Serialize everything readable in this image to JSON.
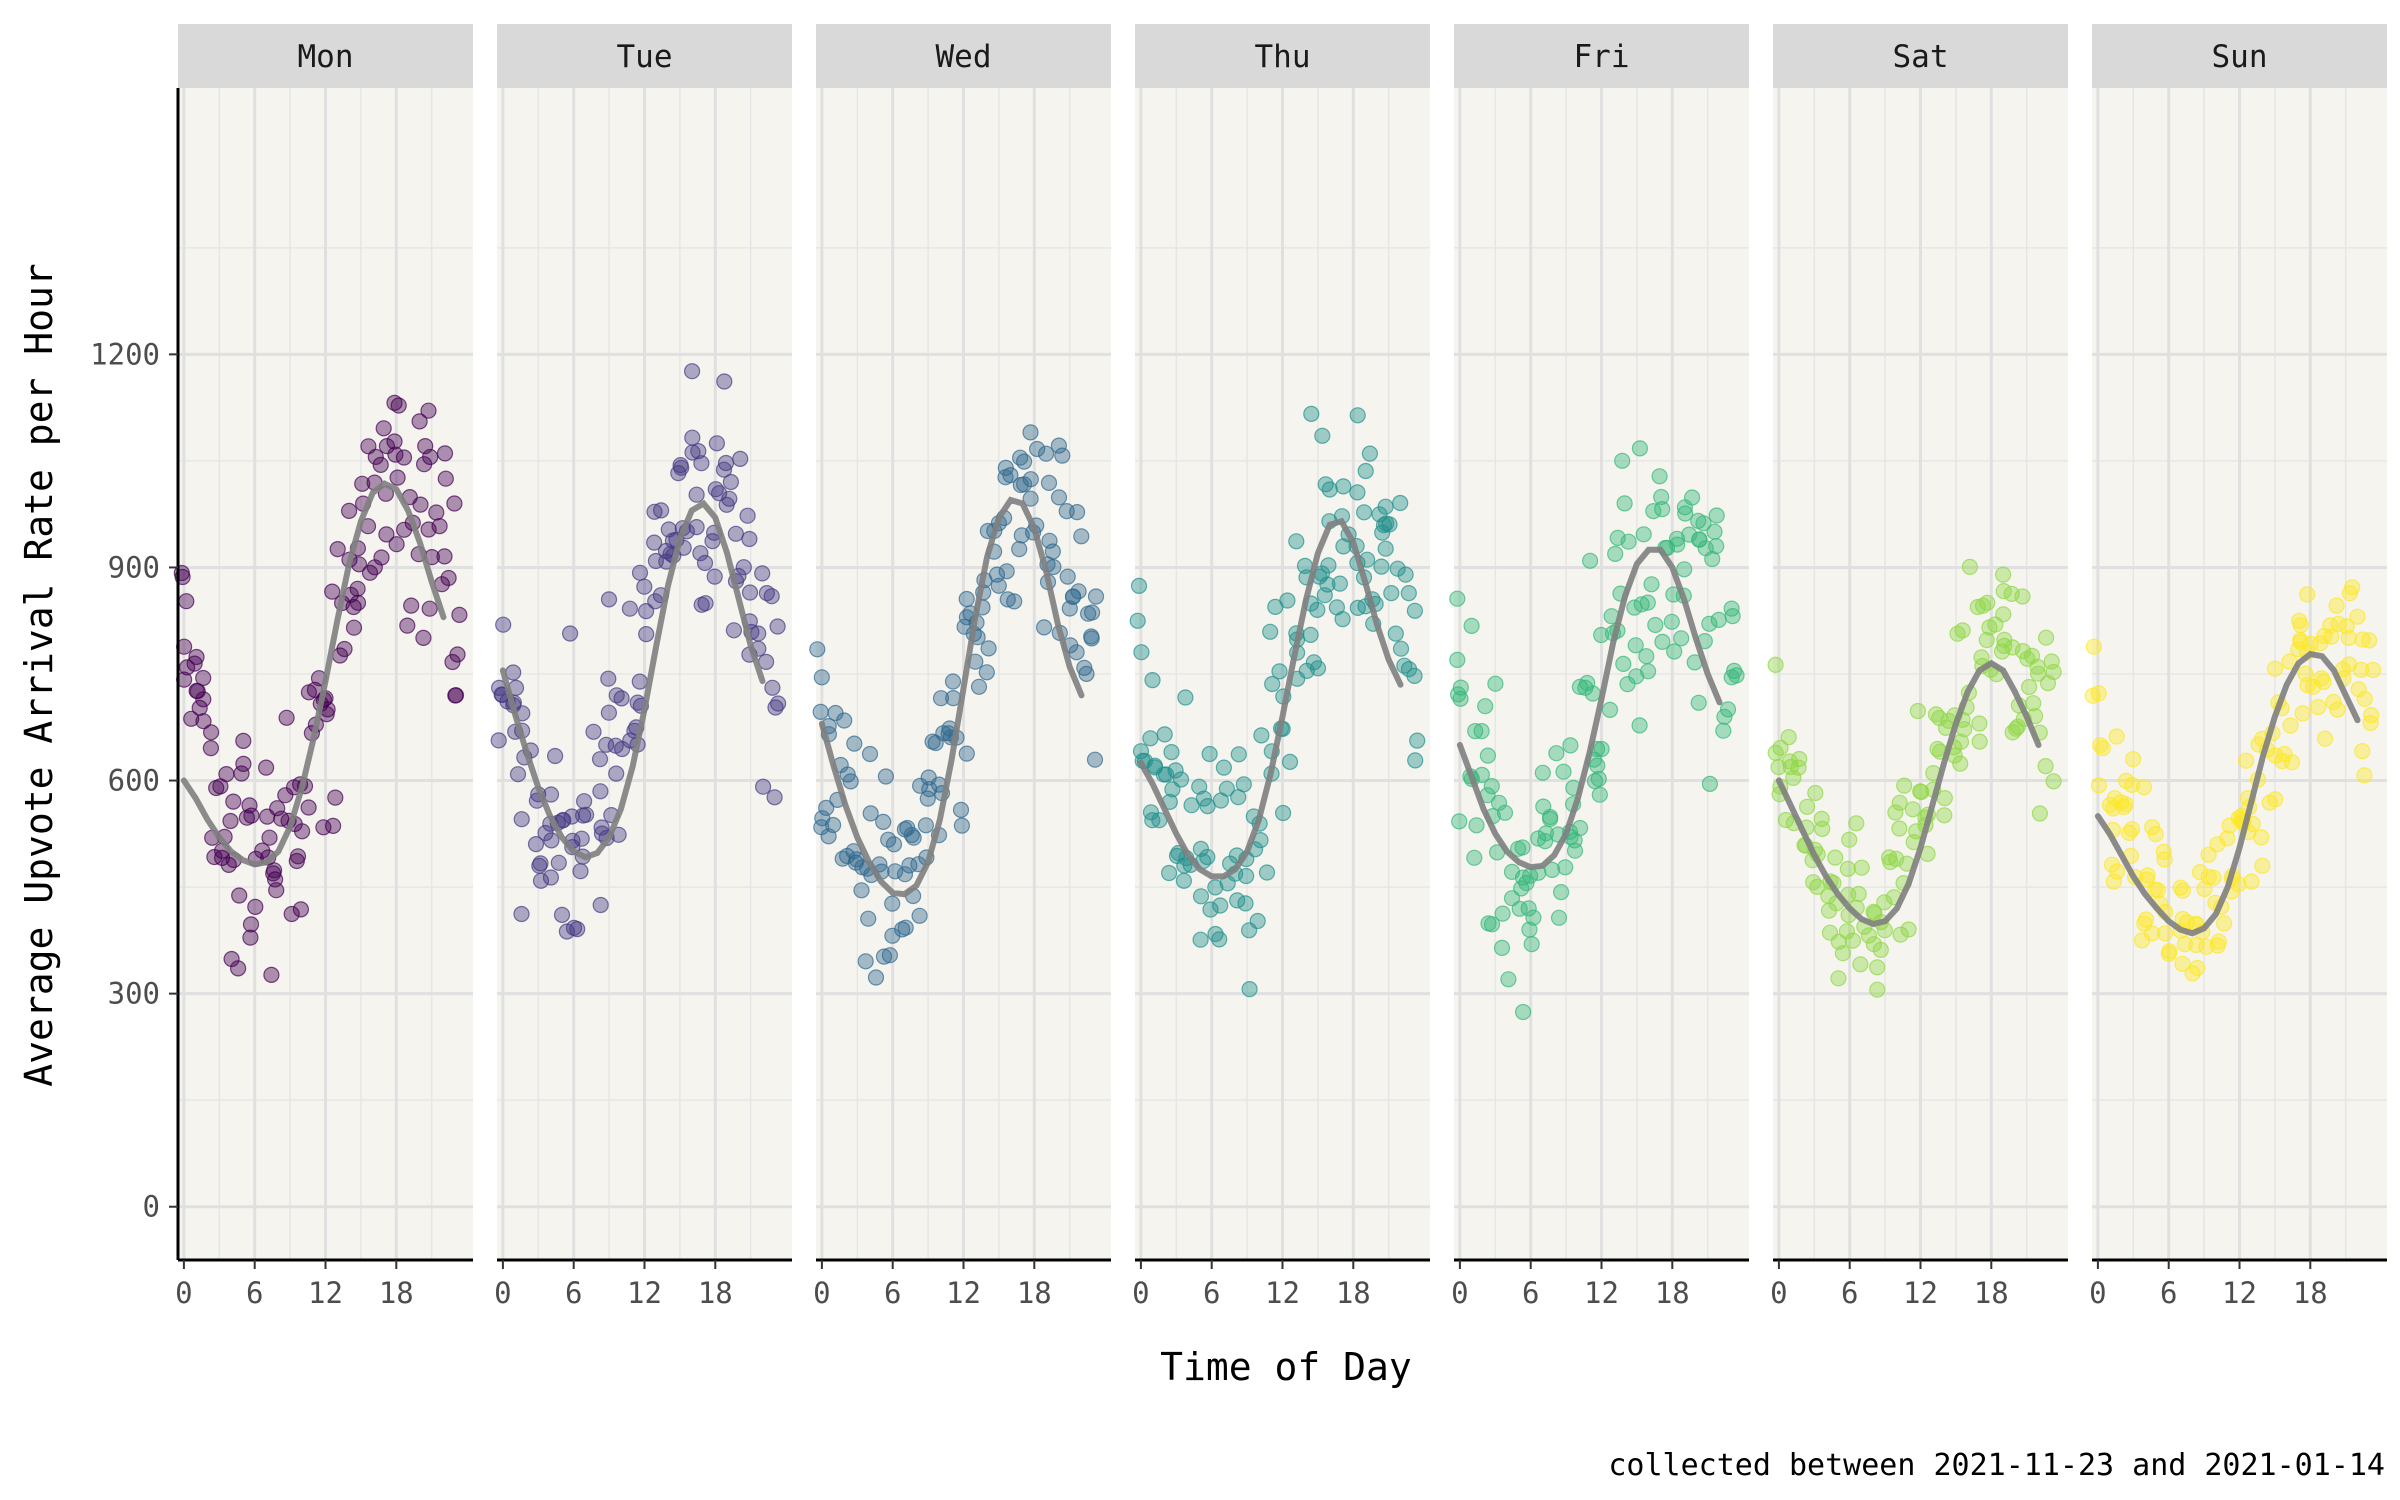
{
  "chart_data": {
    "type": "scatter",
    "title": "",
    "xlabel": "Time of Day",
    "ylabel": "Average Upvote Arrival Rate per Hour",
    "caption": "collected between 2021-11-23 and 2021-01-14",
    "facets": [
      "Mon",
      "Tue",
      "Wed",
      "Thu",
      "Fri",
      "Sat",
      "Sun"
    ],
    "facet_colors": [
      "#440154",
      "#443A83",
      "#31688E",
      "#21908C",
      "#35B779",
      "#8FD744",
      "#FDE725"
    ],
    "smooth_color": "#808080",
    "panel_background": "#F5F4EE",
    "strip_background": "#D9D9D9",
    "grid": true,
    "legend": "none",
    "xlim": [
      -0.5,
      24.5
    ],
    "ylim": [
      -75,
      1575
    ],
    "x_ticks": [
      0,
      6,
      12,
      18
    ],
    "y_ticks": [
      0,
      300,
      600,
      900,
      1200
    ],
    "points_per_hour": 6,
    "trend": [
      {
        "day": "Mon",
        "mean": 750,
        "amp": 265,
        "peak_hour": 18.5,
        "spread": 90,
        "smooth": [
          600,
          575,
          545,
          520,
          500,
          488,
          482,
          485,
          500,
          535,
          590,
          660,
          740,
          825,
          905,
          965,
          1005,
          1018,
          1010,
          980,
          935,
          880,
          830
        ]
      },
      {
        "day": "Tue",
        "mean": 740,
        "amp": 250,
        "peak_hour": 17.5,
        "spread": 85,
        "smooth": [
          755,
          695,
          640,
          590,
          550,
          520,
          500,
          492,
          498,
          520,
          560,
          620,
          700,
          790,
          875,
          940,
          980,
          990,
          970,
          920,
          855,
          790,
          740
        ]
      },
      {
        "day": "Wed",
        "mean": 715,
        "amp": 275,
        "peak_hour": 17.5,
        "spread": 80,
        "smooth": [
          680,
          620,
          565,
          520,
          485,
          458,
          442,
          440,
          452,
          485,
          545,
          630,
          730,
          830,
          915,
          970,
          995,
          990,
          955,
          895,
          820,
          760,
          720
        ]
      },
      {
        "day": "Thu",
        "mean": 715,
        "amp": 255,
        "peak_hour": 18.0,
        "spread": 85,
        "smooth": [
          625,
          595,
          560,
          525,
          495,
          475,
          465,
          465,
          475,
          500,
          545,
          610,
          690,
          775,
          855,
          920,
          960,
          965,
          935,
          880,
          820,
          770,
          735
        ]
      },
      {
        "day": "Fri",
        "mean": 705,
        "amp": 235,
        "peak_hour": 17.8,
        "spread": 90,
        "smooth": [
          650,
          605,
          560,
          525,
          500,
          485,
          478,
          480,
          495,
          525,
          575,
          640,
          715,
          795,
          860,
          905,
          925,
          925,
          900,
          855,
          800,
          750,
          710
        ]
      },
      {
        "day": "Sat",
        "mean": 590,
        "amp": 190,
        "peak_hour": 19.0,
        "spread": 65,
        "smooth": [
          600,
          565,
          530,
          495,
          465,
          440,
          420,
          405,
          398,
          402,
          420,
          455,
          505,
          565,
          625,
          680,
          725,
          755,
          765,
          755,
          725,
          690,
          650
        ]
      },
      {
        "day": "Sun",
        "mean": 585,
        "amp": 200,
        "peak_hour": 19.5,
        "spread": 65,
        "smooth": [
          550,
          525,
          495,
          465,
          440,
          420,
          402,
          390,
          385,
          392,
          412,
          450,
          505,
          570,
          635,
          690,
          735,
          765,
          778,
          775,
          755,
          720,
          685
        ]
      }
    ]
  }
}
